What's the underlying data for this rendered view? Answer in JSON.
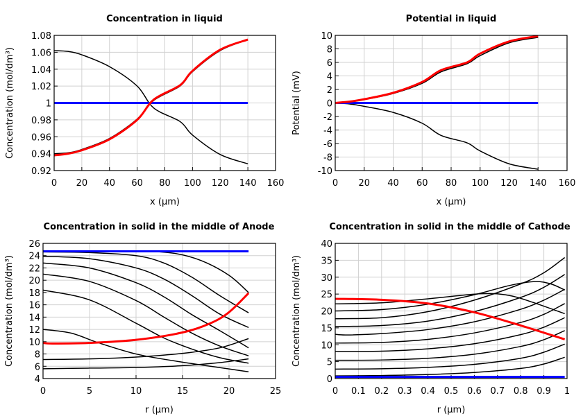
{
  "colors": {
    "state": "#000000",
    "initial": "#0000ff",
    "final": "#ff0000"
  },
  "chart_data": [
    {
      "type": "line",
      "title": "Concentration in liquid",
      "xlabel": "x (µm)",
      "ylabel": "Concentration (mol/dm³)",
      "xlim": [
        0,
        160
      ],
      "ylim": [
        0.92,
        1.08
      ],
      "xticks": [
        "0",
        "20",
        "40",
        "60",
        "80",
        "100",
        "120",
        "140",
        "160"
      ],
      "yticks": [
        "0.92",
        "0.94",
        "0.96",
        "0.98",
        "1",
        "1.02",
        "1.04",
        "1.06",
        "1.08"
      ],
      "grid": true,
      "series": [
        {
          "color": "#000000",
          "points": [
            [
              0,
              1.062
            ],
            [
              10,
              1.061
            ],
            [
              20,
              1.057
            ],
            [
              40,
              1.043
            ],
            [
              60,
              1.02
            ],
            [
              72,
              0.994
            ],
            [
              91,
              0.978
            ],
            [
              100,
              0.962
            ],
            [
              120,
              0.939
            ],
            [
              140,
              0.928
            ]
          ]
        },
        {
          "color": "#000000",
          "points": [
            [
              0,
              0.94
            ],
            [
              10,
              0.941
            ],
            [
              20,
              0.945
            ],
            [
              40,
              0.958
            ],
            [
              60,
              0.981
            ],
            [
              72,
              1.003
            ],
            [
              91,
              1.02
            ],
            [
              100,
              1.037
            ],
            [
              120,
              1.062
            ],
            [
              140,
              1.075
            ]
          ]
        },
        {
          "color": "#0000ff",
          "points": [
            [
              0,
              1
            ],
            [
              140,
              1
            ]
          ]
        },
        {
          "color": "#ff0000",
          "points": [
            [
              0,
              0.938
            ],
            [
              10,
              0.94
            ],
            [
              20,
              0.944
            ],
            [
              40,
              0.957
            ],
            [
              60,
              0.98
            ],
            [
              72,
              1.004
            ],
            [
              91,
              1.021
            ],
            [
              100,
              1.038
            ],
            [
              120,
              1.063
            ],
            [
              140,
              1.075
            ]
          ]
        }
      ]
    },
    {
      "type": "line",
      "title": "Potential in liquid",
      "xlabel": "x (µm)",
      "ylabel": "Potential (mV)",
      "xlim": [
        0,
        160
      ],
      "ylim": [
        -10,
        10
      ],
      "xticks": [
        "0",
        "20",
        "40",
        "60",
        "80",
        "100",
        "120",
        "140",
        "160"
      ],
      "yticks": [
        "-10",
        "-8",
        "-6",
        "-4",
        "-2",
        "0",
        "2",
        "4",
        "6",
        "8",
        "10"
      ],
      "grid": true,
      "series": [
        {
          "color": "#000000",
          "points": [
            [
              0,
              0
            ],
            [
              10,
              0.15
            ],
            [
              20,
              0.5
            ],
            [
              40,
              1.4
            ],
            [
              60,
              2.9
            ],
            [
              73,
              4.6
            ],
            [
              91,
              5.8
            ],
            [
              100,
              7.0
            ],
            [
              120,
              8.9
            ],
            [
              140,
              9.7
            ]
          ]
        },
        {
          "color": "#000000",
          "points": [
            [
              0,
              0
            ],
            [
              10,
              -0.15
            ],
            [
              20,
              -0.5
            ],
            [
              40,
              -1.4
            ],
            [
              60,
              -3.0
            ],
            [
              73,
              -4.8
            ],
            [
              91,
              -5.9
            ],
            [
              100,
              -7.1
            ],
            [
              120,
              -9.0
            ],
            [
              140,
              -9.8
            ]
          ]
        },
        {
          "color": "#0000ff",
          "points": [
            [
              0,
              0
            ],
            [
              140,
              0
            ]
          ]
        },
        {
          "color": "#ff0000",
          "points": [
            [
              0,
              0
            ],
            [
              10,
              0.2
            ],
            [
              20,
              0.55
            ],
            [
              40,
              1.5
            ],
            [
              60,
              3.1
            ],
            [
              73,
              4.85
            ],
            [
              91,
              6.0
            ],
            [
              100,
              7.3
            ],
            [
              120,
              9.1
            ],
            [
              140,
              9.9
            ]
          ]
        }
      ]
    },
    {
      "type": "line",
      "title": "Concentration in solid in the middle of Anode",
      "xlabel": "r (µm)",
      "ylabel": "Concentration (mol/dm³)",
      "xlim": [
        0,
        25
      ],
      "ylim": [
        4,
        26
      ],
      "xticks": [
        "0",
        "5",
        "10",
        "15",
        "20",
        "25"
      ],
      "yticks": [
        "4",
        "6",
        "8",
        "10",
        "12",
        "14",
        "16",
        "18",
        "20",
        "22",
        "24",
        "26"
      ],
      "grid": true,
      "series": [
        {
          "color": "#000000",
          "points": [
            [
              0,
              24.7
            ],
            [
              10,
              24.7
            ],
            [
              14,
              24.4
            ],
            [
              17,
              23.2
            ],
            [
              20,
              20.8
            ],
            [
              22.1,
              18
            ]
          ]
        },
        {
          "color": "#000000",
          "points": [
            [
              0,
              24.6
            ],
            [
              5,
              24.5
            ],
            [
              10,
              24
            ],
            [
              13,
              22.8
            ],
            [
              16,
              20.5
            ],
            [
              19,
              17.5
            ],
            [
              22.1,
              14.7
            ]
          ]
        },
        {
          "color": "#000000",
          "points": [
            [
              0,
              23.9
            ],
            [
              5,
              23.5
            ],
            [
              10,
              22
            ],
            [
              13,
              20.2
            ],
            [
              16,
              17.5
            ],
            [
              19,
              14.5
            ],
            [
              22.1,
              12.3
            ]
          ]
        },
        {
          "color": "#000000",
          "points": [
            [
              0,
              22.8
            ],
            [
              5,
              22
            ],
            [
              10,
              19.6
            ],
            [
              13,
              17.3
            ],
            [
              16,
              14.4
            ],
            [
              19,
              11.8
            ],
            [
              22.1,
              9.0
            ]
          ]
        },
        {
          "color": "#000000",
          "points": [
            [
              0,
              21
            ],
            [
              5,
              19.8
            ],
            [
              10,
              16.7
            ],
            [
              13,
              14
            ],
            [
              16,
              11.4
            ],
            [
              19,
              9.3
            ],
            [
              22.1,
              7.7
            ]
          ]
        },
        {
          "color": "#000000",
          "points": [
            [
              0,
              18.4
            ],
            [
              5,
              16.8
            ],
            [
              10,
              13
            ],
            [
              13,
              10.6
            ],
            [
              16,
              8.8
            ],
            [
              19,
              7.4
            ],
            [
              22.1,
              6.5
            ]
          ]
        },
        {
          "color": "#000000",
          "points": [
            [
              0,
              12
            ],
            [
              3,
              11.4
            ],
            [
              6,
              9.8
            ],
            [
              10,
              8
            ],
            [
              14,
              6.9
            ],
            [
              18,
              6.0
            ],
            [
              22.1,
              5.1
            ]
          ]
        },
        {
          "color": "#000000",
          "points": [
            [
              0,
              7.1
            ],
            [
              5,
              7.2
            ],
            [
              10,
              7.5
            ],
            [
              15,
              8.1
            ],
            [
              19,
              9.0
            ],
            [
              22.1,
              10.5
            ]
          ]
        },
        {
          "color": "#000000",
          "points": [
            [
              0,
              5.6
            ],
            [
              5,
              5.7
            ],
            [
              10,
              5.8
            ],
            [
              15,
              6.1
            ],
            [
              19,
              6.6
            ],
            [
              22.1,
              7.2
            ]
          ]
        },
        {
          "color": "#0000ff",
          "points": [
            [
              0,
              24.7
            ],
            [
              22.1,
              24.7
            ]
          ]
        },
        {
          "color": "#ff0000",
          "points": [
            [
              0,
              9.8
            ],
            [
              1,
              9.7
            ],
            [
              5,
              9.8
            ],
            [
              10,
              10.3
            ],
            [
              15,
              11.5
            ],
            [
              18,
              13
            ],
            [
              20,
              14.8
            ],
            [
              22.1,
              17.9
            ]
          ]
        }
      ]
    },
    {
      "type": "line",
      "title": "Concentration in solid in the middle of Cathode",
      "xlabel": "r (µm)",
      "ylabel": "Concentration (mol/dm³)",
      "xlim": [
        0,
        1
      ],
      "ylim": [
        0,
        40
      ],
      "xticks": [
        "0",
        "0.1",
        "0.2",
        "0.3",
        "0.4",
        "0.5",
        "0.6",
        "0.7",
        "0.8",
        "0.9",
        "1"
      ],
      "yticks": [
        "0",
        "5",
        "10",
        "15",
        "20",
        "25",
        "30",
        "35",
        "40"
      ],
      "grid": true,
      "series": [
        {
          "color": "#000000",
          "points": [
            [
              0,
              22.1
            ],
            [
              0.2,
              22.4
            ],
            [
              0.4,
              23.6
            ],
            [
              0.63,
              25.1
            ],
            [
              0.75,
              24.6
            ],
            [
              0.85,
              22.6
            ],
            [
              0.99,
              19.2
            ]
          ]
        },
        {
          "color": "#000000",
          "points": [
            [
              0,
              20
            ],
            [
              0.2,
              20.4
            ],
            [
              0.4,
              22
            ],
            [
              0.6,
              24.8
            ],
            [
              0.75,
              27.5
            ],
            [
              0.86,
              28.7
            ],
            [
              0.93,
              28
            ],
            [
              0.99,
              26.2
            ]
          ]
        },
        {
          "color": "#000000",
          "points": [
            [
              0,
              17.7
            ],
            [
              0.2,
              18
            ],
            [
              0.4,
              19.8
            ],
            [
              0.6,
              23.2
            ],
            [
              0.8,
              28
            ],
            [
              0.9,
              31.3
            ],
            [
              0.99,
              35.8
            ]
          ]
        },
        {
          "color": "#000000",
          "points": [
            [
              0,
              15.4
            ],
            [
              0.2,
              15.7
            ],
            [
              0.4,
              17
            ],
            [
              0.6,
              19.8
            ],
            [
              0.8,
              24
            ],
            [
              0.9,
              27
            ],
            [
              0.99,
              30.8
            ]
          ]
        },
        {
          "color": "#000000",
          "points": [
            [
              0,
              13.1
            ],
            [
              0.05,
              12.9
            ],
            [
              0.2,
              13.3
            ],
            [
              0.4,
              14.5
            ],
            [
              0.6,
              16.8
            ],
            [
              0.8,
              20.5
            ],
            [
              0.9,
              23.2
            ],
            [
              0.99,
              26.4
            ]
          ]
        },
        {
          "color": "#000000",
          "points": [
            [
              0,
              10.5
            ],
            [
              0.2,
              10.7
            ],
            [
              0.4,
              11.6
            ],
            [
              0.6,
              13.5
            ],
            [
              0.8,
              16.6
            ],
            [
              0.9,
              19
            ],
            [
              0.99,
              22.2
            ]
          ]
        },
        {
          "color": "#000000",
          "points": [
            [
              0,
              8
            ],
            [
              0.2,
              8.1
            ],
            [
              0.4,
              8.8
            ],
            [
              0.6,
              10.3
            ],
            [
              0.8,
              13
            ],
            [
              0.9,
              15.2
            ],
            [
              0.99,
              18
            ]
          ]
        },
        {
          "color": "#000000",
          "points": [
            [
              0,
              5.4
            ],
            [
              0.2,
              5.5
            ],
            [
              0.4,
              6
            ],
            [
              0.6,
              7.2
            ],
            [
              0.8,
              9.5
            ],
            [
              0.9,
              11.5
            ],
            [
              0.99,
              14.2
            ]
          ]
        },
        {
          "color": "#000000",
          "points": [
            [
              0,
              2.8
            ],
            [
              0.2,
              2.9
            ],
            [
              0.4,
              3.3
            ],
            [
              0.6,
              4.2
            ],
            [
              0.8,
              6
            ],
            [
              0.9,
              7.8
            ],
            [
              0.99,
              10.2
            ]
          ]
        },
        {
          "color": "#000000",
          "points": [
            [
              0,
              0.8
            ],
            [
              0.2,
              0.9
            ],
            [
              0.4,
              1.2
            ],
            [
              0.6,
              1.8
            ],
            [
              0.8,
              3
            ],
            [
              0.9,
              4.3
            ],
            [
              0.99,
              6.3
            ]
          ]
        },
        {
          "color": "#0000ff",
          "points": [
            [
              0,
              0.5
            ],
            [
              0.99,
              0.5
            ]
          ]
        },
        {
          "color": "#ff0000",
          "points": [
            [
              0,
              23.6
            ],
            [
              0.2,
              23.3
            ],
            [
              0.4,
              22.2
            ],
            [
              0.6,
              19.6
            ],
            [
              0.8,
              15.7
            ],
            [
              0.99,
              11.6
            ]
          ]
        }
      ]
    }
  ]
}
